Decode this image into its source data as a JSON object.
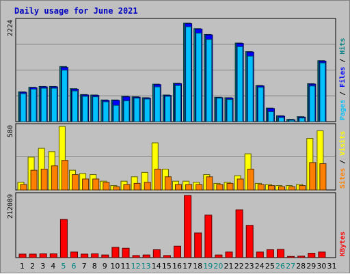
{
  "title": "Daily usage for June 2021",
  "colors": {
    "pages": "#00c0ff",
    "files": "#0000ff",
    "hits": "#008080",
    "sites": "#ff8000",
    "visits": "#ffff00",
    "kbytes": "#ff0000",
    "panel_bg": "#c0c0c0",
    "grid": "#808080",
    "weekend": "#008080",
    "weekday": "#000000"
  },
  "chart_data": [
    {
      "type": "bar",
      "panel": "top",
      "ymax_label": "2224",
      "ylim": [
        0,
        2224
      ],
      "legend": [
        "Pages",
        "Files",
        "Hits"
      ],
      "categories": [
        "1",
        "2",
        "3",
        "4",
        "5",
        "6",
        "7",
        "8",
        "9",
        "10",
        "11",
        "12",
        "13",
        "14",
        "15",
        "16",
        "17",
        "18",
        "19",
        "20",
        "21",
        "22",
        "23",
        "24",
        "25",
        "26",
        "27",
        "28",
        "29",
        "30",
        "31"
      ],
      "weekend_days": [
        5,
        6,
        12,
        13,
        19,
        20,
        26,
        27
      ],
      "series": [
        {
          "name": "Hits",
          "values": [
            660,
            760,
            780,
            780,
            1220,
            730,
            600,
            590,
            480,
            480,
            560,
            550,
            530,
            830,
            590,
            850,
            2180,
            2060,
            1930,
            540,
            530,
            1740,
            1550,
            800,
            300,
            130,
            50,
            110,
            840,
            1350,
            0
          ]
        },
        {
          "name": "Files",
          "values": [
            650,
            750,
            770,
            770,
            1200,
            720,
            590,
            580,
            470,
            470,
            550,
            540,
            520,
            820,
            580,
            840,
            2170,
            2050,
            1920,
            530,
            520,
            1730,
            1540,
            790,
            290,
            120,
            40,
            100,
            830,
            1340,
            0
          ]
        },
        {
          "name": "Pages",
          "values": [
            620,
            720,
            740,
            740,
            1140,
            680,
            560,
            550,
            440,
            360,
            460,
            520,
            500,
            770,
            560,
            800,
            2100,
            1960,
            1820,
            520,
            490,
            1660,
            1450,
            760,
            220,
            90,
            30,
            80,
            790,
            1300,
            0
          ]
        }
      ]
    },
    {
      "type": "bar",
      "panel": "middle",
      "ymax_label": "580",
      "ylim": [
        0,
        580
      ],
      "legend": [
        "Sites",
        "Visits"
      ],
      "categories": [
        "1",
        "2",
        "3",
        "4",
        "5",
        "6",
        "7",
        "8",
        "9",
        "10",
        "11",
        "12",
        "13",
        "14",
        "15",
        "16",
        "17",
        "18",
        "19",
        "20",
        "21",
        "22",
        "23",
        "24",
        "25",
        "26",
        "27",
        "28",
        "29",
        "30",
        "31"
      ],
      "series": [
        {
          "name": "Visits",
          "values": [
            70,
            300,
            380,
            350,
            580,
            180,
            150,
            140,
            80,
            40,
            80,
            120,
            160,
            430,
            190,
            80,
            80,
            70,
            140,
            60,
            70,
            130,
            330,
            60,
            50,
            40,
            40,
            50,
            470,
            540,
            0
          ]
        },
        {
          "name": "Sites",
          "values": [
            50,
            180,
            190,
            220,
            270,
            140,
            100,
            100,
            70,
            30,
            50,
            60,
            70,
            190,
            120,
            50,
            50,
            50,
            120,
            50,
            60,
            100,
            190,
            50,
            40,
            30,
            30,
            40,
            250,
            240,
            0
          ]
        }
      ]
    },
    {
      "type": "bar",
      "panel": "bottom",
      "ymax_label": "212089",
      "ylim": [
        0,
        212089
      ],
      "legend": [
        "KBytes"
      ],
      "categories": [
        "1",
        "2",
        "3",
        "4",
        "5",
        "6",
        "7",
        "8",
        "9",
        "10",
        "11",
        "12",
        "13",
        "14",
        "15",
        "16",
        "17",
        "18",
        "19",
        "20",
        "21",
        "22",
        "23",
        "24",
        "25",
        "26",
        "27",
        "28",
        "29",
        "30",
        "31"
      ],
      "series": [
        {
          "name": "KBytes",
          "values": [
            12000,
            12000,
            13000,
            13000,
            130000,
            19000,
            12000,
            13000,
            9000,
            35000,
            32000,
            7000,
            9000,
            27000,
            7000,
            39000,
            212000,
            84000,
            145000,
            9000,
            19000,
            163000,
            110000,
            19000,
            27000,
            28000,
            4000,
            5000,
            15000,
            19000,
            0
          ]
        }
      ]
    }
  ]
}
